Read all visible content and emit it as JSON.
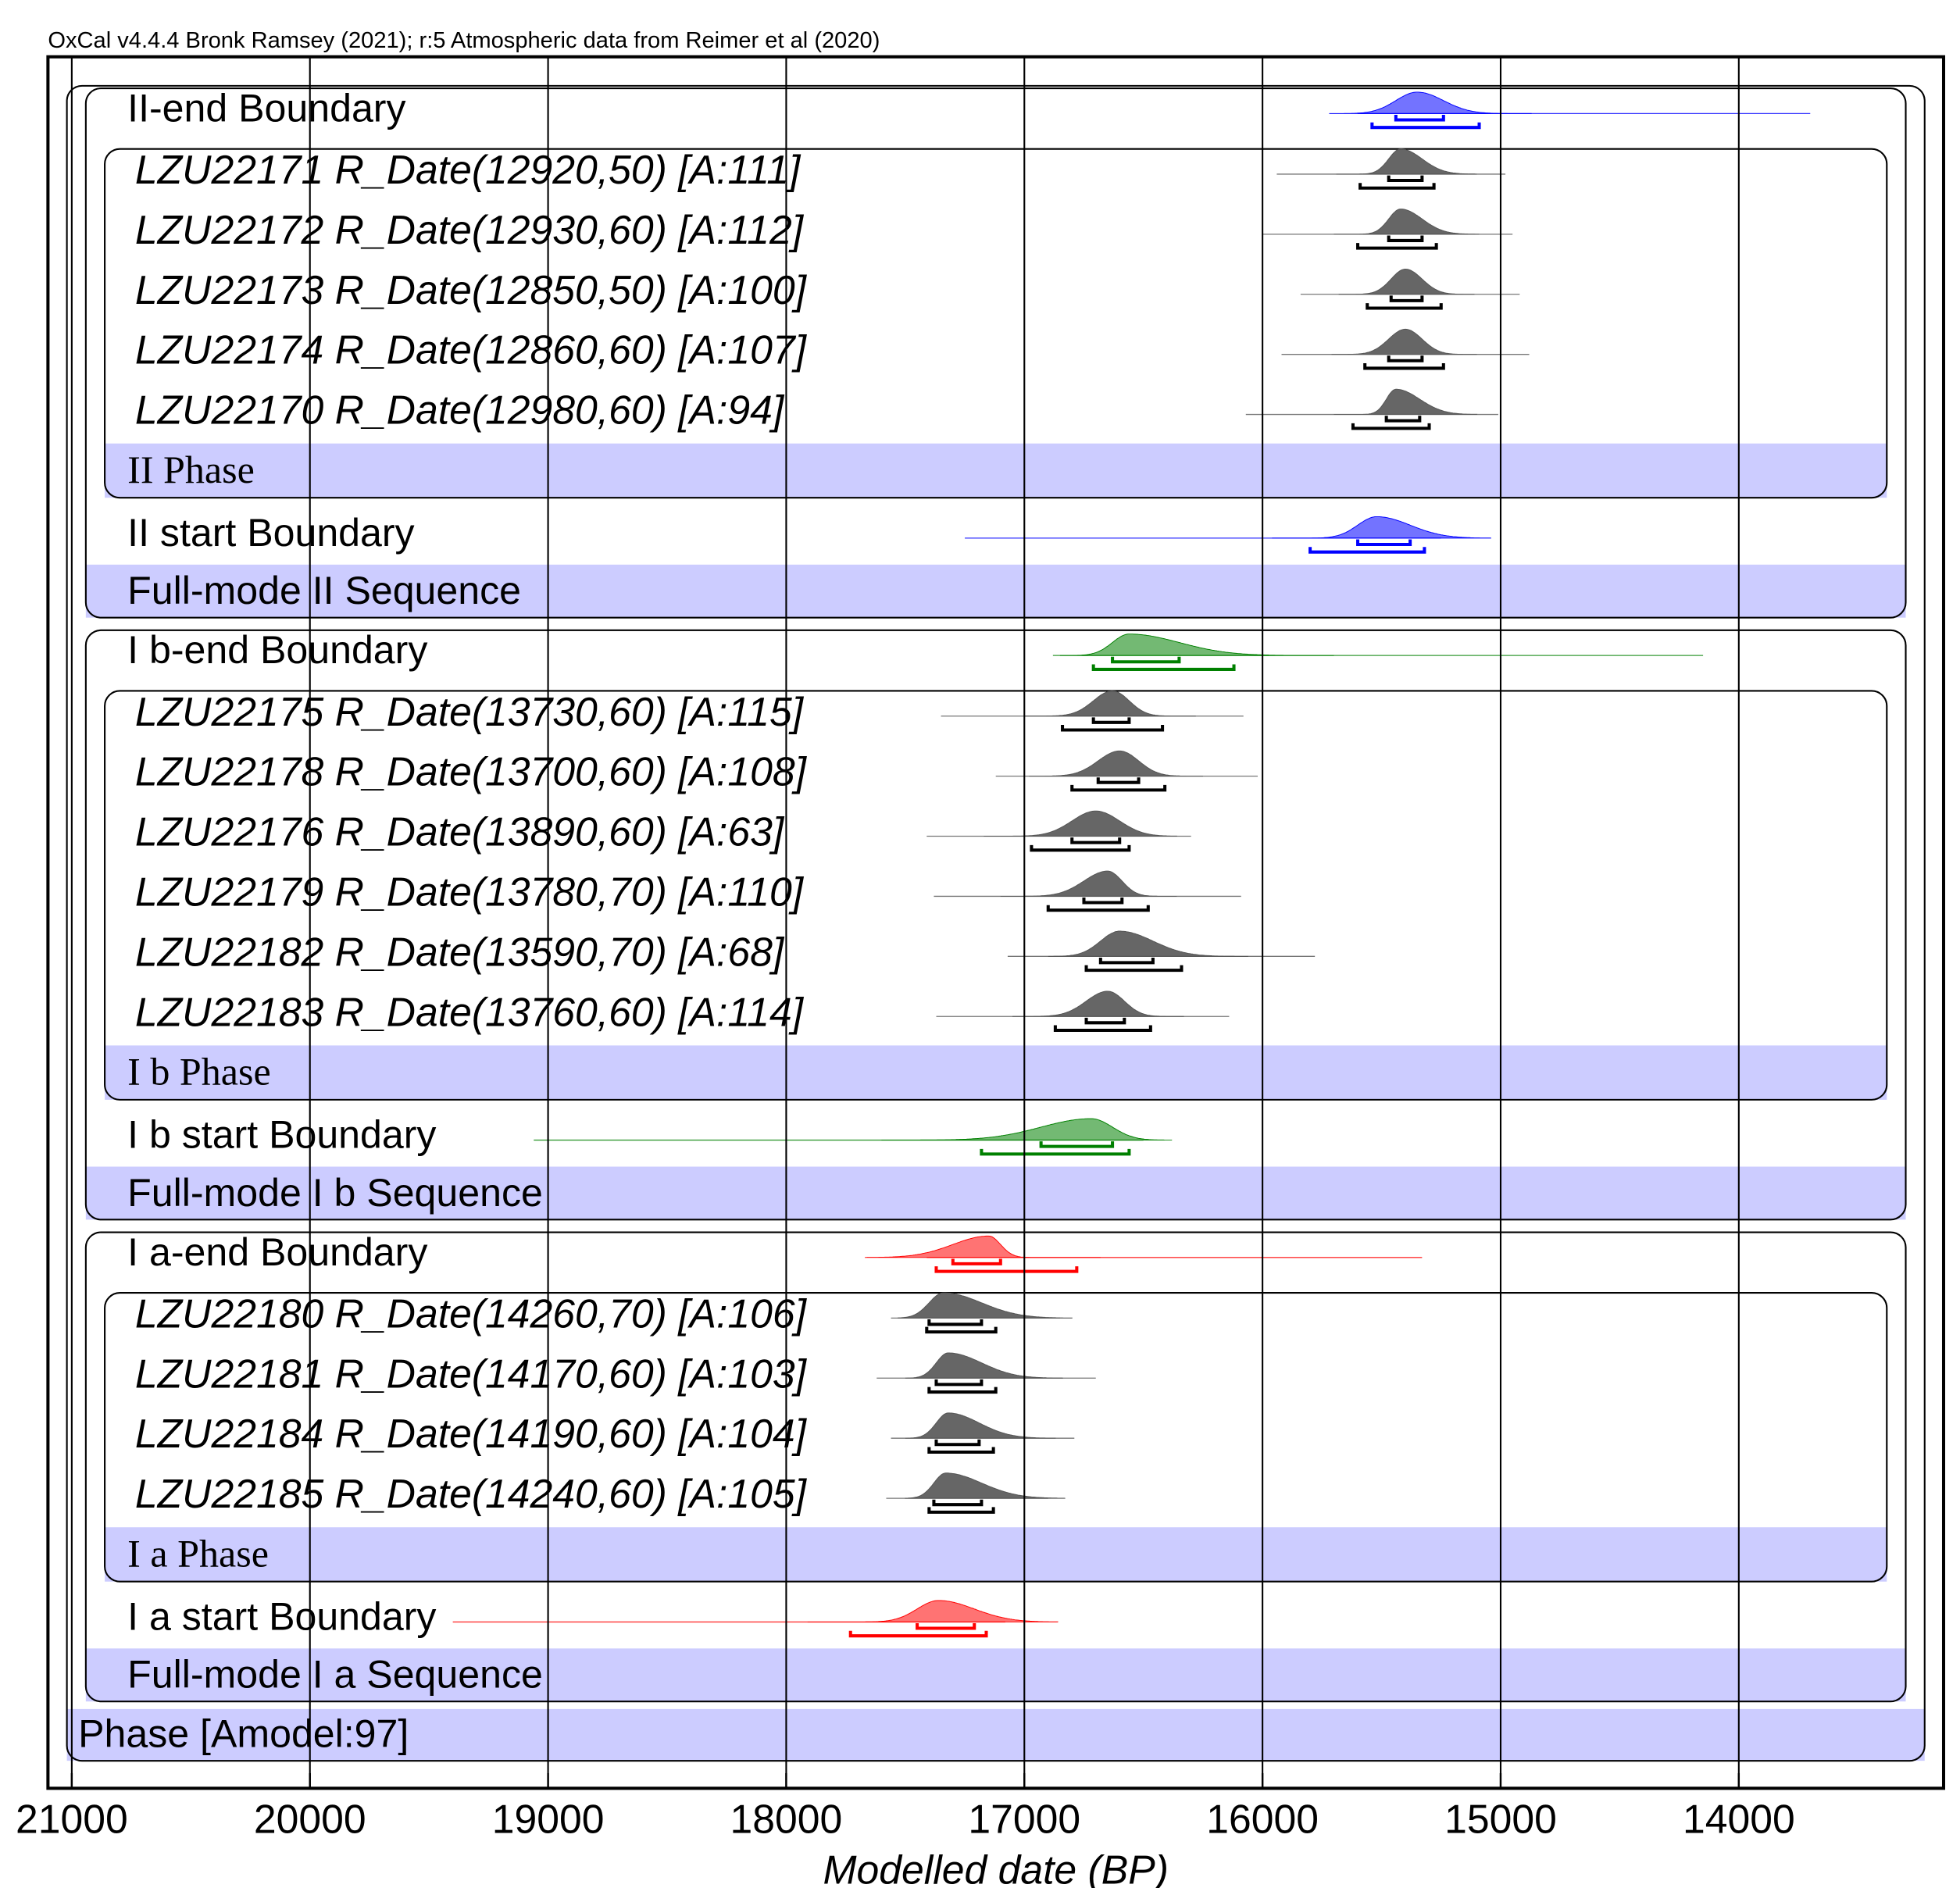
{
  "chart_data": {
    "type": "oxcal",
    "title": "OxCal v4.4.4 Bronk Ramsey (2021); r:5 Atmospheric data from Reimer et al (2020)",
    "xlabel": "Modelled date (BP)",
    "xlim": [
      21100,
      13140
    ],
    "xticks": [
      21000,
      20000,
      19000,
      18000,
      17000,
      16000,
      15000,
      14000
    ],
    "grid": true,
    "band_color": "#ccccff",
    "date_color": "#555555",
    "model": {
      "label": "Phase [Amodel:97]",
      "sequences": [
        {
          "label": "Full-mode II Sequence",
          "end": {
            "label": "II-end Boundary",
            "color": "#0000ff",
            "mode": 15350,
            "hpd68": [
              15440,
              15240
            ],
            "hpd95": [
              15540,
              15090
            ],
            "tail": [
              15600,
              13700
            ]
          },
          "phase": {
            "label": "II Phase",
            "dates": [
              {
                "label": "LZU22171 R_Date(12920,50) [A:111]",
                "mode": 15420,
                "hpd68": [
                  15470,
                  15330
                ],
                "hpd95": [
                  15590,
                  15280
                ],
                "tail": [
                  15940,
                  14980
                ]
              },
              {
                "label": "LZU22172 R_Date(12930,60) [A:112]",
                "mode": 15420,
                "hpd68": [
                  15470,
                  15330
                ],
                "hpd95": [
                  15600,
                  15270
                ],
                "tail": [
                  16000,
                  14950
                ]
              },
              {
                "label": "LZU22173 R_Date(12850,50) [A:100]",
                "mode": 15400,
                "hpd68": [
                  15460,
                  15330
                ],
                "hpd95": [
                  15560,
                  15250
                ],
                "tail": [
                  15840,
                  14920
                ]
              },
              {
                "label": "LZU22174 R_Date(12860,60) [A:107]",
                "mode": 15400,
                "hpd68": [
                  15470,
                  15330
                ],
                "hpd95": [
                  15570,
                  15240
                ],
                "tail": [
                  15920,
                  14880
                ]
              },
              {
                "label": "LZU22170 R_Date(12980,60) [A:94]",
                "mode": 15440,
                "hpd68": [
                  15480,
                  15340
                ],
                "hpd95": [
                  15620,
                  15300
                ],
                "tail": [
                  16070,
                  15010
                ]
              }
            ]
          },
          "start": {
            "label": "II start Boundary",
            "color": "#0000ff",
            "mode": 15520,
            "hpd68": [
              15600,
              15380
            ],
            "hpd95": [
              15800,
              15320
            ],
            "tail": [
              17250,
              15250
            ]
          }
        },
        {
          "label": "Full-mode I b Sequence",
          "end": {
            "label": "I b-end Boundary",
            "color": "#008000",
            "mode": 16560,
            "hpd68": [
              16630,
              16350
            ],
            "hpd95": [
              16710,
              16120
            ],
            "tail": [
              16880,
              14150
            ]
          },
          "phase": {
            "label": "I b Phase",
            "dates": [
              {
                "label": "LZU22175 R_Date(13730,60) [A:115]",
                "mode": 16630,
                "hpd68": [
                  16710,
                  16560
                ],
                "hpd95": [
                  16840,
                  16420
                ],
                "tail": [
                  17350,
                  16080
                ]
              },
              {
                "label": "LZU22178 R_Date(13700,60) [A:108]",
                "mode": 16600,
                "hpd68": [
                  16690,
                  16520
                ],
                "hpd95": [
                  16800,
                  16410
                ],
                "tail": [
                  17120,
                  16020
                ]
              },
              {
                "label": "LZU22176 R_Date(13890,60) [A:63]",
                "mode": 16700,
                "hpd68": [
                  16800,
                  16600
                ],
                "hpd95": [
                  16970,
                  16560
                ],
                "tail": [
                  17410,
                  16300
                ]
              },
              {
                "label": "LZU22179 R_Date(13780,70) [A:110]",
                "mode": 16650,
                "hpd68": [
                  16750,
                  16590
                ],
                "hpd95": [
                  16900,
                  16480
                ],
                "tail": [
                  17380,
                  16090
                ]
              },
              {
                "label": "LZU22182 R_Date(13590,70) [A:68]",
                "mode": 16600,
                "hpd68": [
                  16680,
                  16460
                ],
                "hpd95": [
                  16740,
                  16340
                ],
                "tail": [
                  17070,
                  15780
                ]
              },
              {
                "label": "LZU22183 R_Date(13760,60) [A:114]",
                "mode": 16650,
                "hpd68": [
                  16740,
                  16580
                ],
                "hpd95": [
                  16870,
                  16470
                ],
                "tail": [
                  17370,
                  16140
                ]
              }
            ]
          },
          "start": {
            "label": "I b start Boundary",
            "color": "#008000",
            "mode": 16720,
            "hpd68": [
              16930,
              16630
            ],
            "hpd95": [
              17180,
              16560
            ],
            "tail": [
              19060,
              16500
            ]
          }
        },
        {
          "label": "Full-mode I a Sequence",
          "end": {
            "label": "I a-end Boundary",
            "color": "#ff0000",
            "mode": 17150,
            "hpd68": [
              17300,
              17100
            ],
            "hpd95": [
              17370,
              16780
            ],
            "tail": [
              17410,
              15330
            ]
          },
          "phase": {
            "label": "I a Phase",
            "dates": [
              {
                "label": "LZU22180 R_Date(14260,70) [A:106]",
                "mode": 17340,
                "hpd68": [
                  17400,
                  17180
                ],
                "hpd95": [
                  17410,
                  17120
                ],
                "tail": [
                  17560,
                  16850
                ]
              },
              {
                "label": "LZU22181 R_Date(14170,60) [A:103]",
                "mode": 17320,
                "hpd68": [
                  17370,
                  17180
                ],
                "hpd95": [
                  17400,
                  17120
                ],
                "tail": [
                  17620,
                  16700
                ]
              },
              {
                "label": "LZU22184 R_Date(14190,60) [A:104]",
                "mode": 17320,
                "hpd68": [
                  17370,
                  17190
                ],
                "hpd95": [
                  17400,
                  17130
                ],
                "tail": [
                  17560,
                  16790
                ]
              },
              {
                "label": "LZU22185 R_Date(14240,60) [A:105]",
                "mode": 17330,
                "hpd68": [
                  17380,
                  17180
                ],
                "hpd95": [
                  17400,
                  17130
                ],
                "tail": [
                  17580,
                  16900
                ]
              }
            ]
          },
          "start": {
            "label": "I a start Boundary",
            "color": "#ff0000",
            "mode": 17360,
            "hpd68": [
              17450,
              17210
            ],
            "hpd95": [
              17730,
              17160
            ],
            "tail": [
              19400,
              17080
            ]
          }
        }
      ]
    }
  }
}
